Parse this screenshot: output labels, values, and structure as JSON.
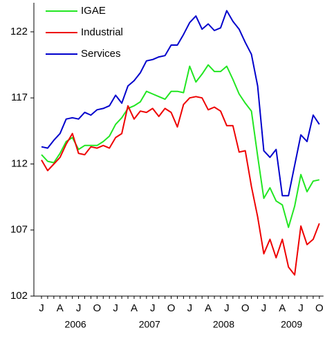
{
  "chart_data": {
    "type": "line",
    "categories": [
      "J",
      null,
      null,
      "A",
      null,
      null,
      "J",
      null,
      null,
      "O",
      null,
      null,
      "J",
      null,
      null,
      "A",
      null,
      null,
      "J",
      null,
      null,
      "O",
      null,
      null,
      "J",
      null,
      null,
      "A",
      null,
      null,
      "J",
      null,
      null,
      "O",
      null,
      null,
      "J",
      null,
      null,
      "A",
      null,
      null,
      "J",
      null,
      null,
      "O"
    ],
    "years": [
      "2006",
      "2007",
      "2008",
      "2009"
    ],
    "ylim": [
      102,
      124.2
    ],
    "yticks": [
      102,
      107,
      112,
      117,
      122
    ],
    "series": [
      {
        "name": "IGAE",
        "color": "#22e622",
        "values": [
          112.7,
          112.2,
          112.1,
          112.8,
          113.7,
          114.0,
          113.1,
          113.4,
          113.4,
          113.4,
          113.7,
          114.1,
          115.0,
          115.5,
          116.2,
          116.4,
          116.7,
          117.5,
          117.3,
          117.1,
          116.9,
          117.5,
          117.5,
          117.4,
          119.4,
          118.2,
          118.8,
          119.5,
          119.0,
          119.0,
          119.4,
          118.4,
          117.3,
          116.6,
          116.0,
          112.6,
          109.4,
          110.2,
          109.2,
          108.9,
          107.2,
          108.8,
          111.2,
          109.9,
          110.7,
          110.8
        ]
      },
      {
        "name": "Industrial",
        "color": "#ee0000",
        "values": [
          112.3,
          111.5,
          112.0,
          112.5,
          113.5,
          114.3,
          112.8,
          112.7,
          113.3,
          113.2,
          113.4,
          113.2,
          114.0,
          114.3,
          116.4,
          115.4,
          116.0,
          115.9,
          116.2,
          115.6,
          116.2,
          115.9,
          114.8,
          116.5,
          117.0,
          117.1,
          117.0,
          116.1,
          116.3,
          116.0,
          114.9,
          114.9,
          112.9,
          113.0,
          110.3,
          108.0,
          105.2,
          106.3,
          104.9,
          106.3,
          104.2,
          103.6,
          107.3,
          105.9,
          106.3,
          107.5
        ]
      },
      {
        "name": "Services",
        "color": "#0000cc",
        "values": [
          113.3,
          113.2,
          113.8,
          114.3,
          115.4,
          115.5,
          115.4,
          115.9,
          115.7,
          116.1,
          116.2,
          116.4,
          117.2,
          116.6,
          117.9,
          118.3,
          118.9,
          119.8,
          119.9,
          120.1,
          120.2,
          121.0,
          121.0,
          121.8,
          122.7,
          123.2,
          122.2,
          122.6,
          122.1,
          122.3,
          123.6,
          122.8,
          122.2,
          121.2,
          120.3,
          117.9,
          113.0,
          112.5,
          113.1,
          109.6,
          109.6,
          111.9,
          114.2,
          113.7,
          115.7,
          115.0
        ]
      }
    ]
  }
}
